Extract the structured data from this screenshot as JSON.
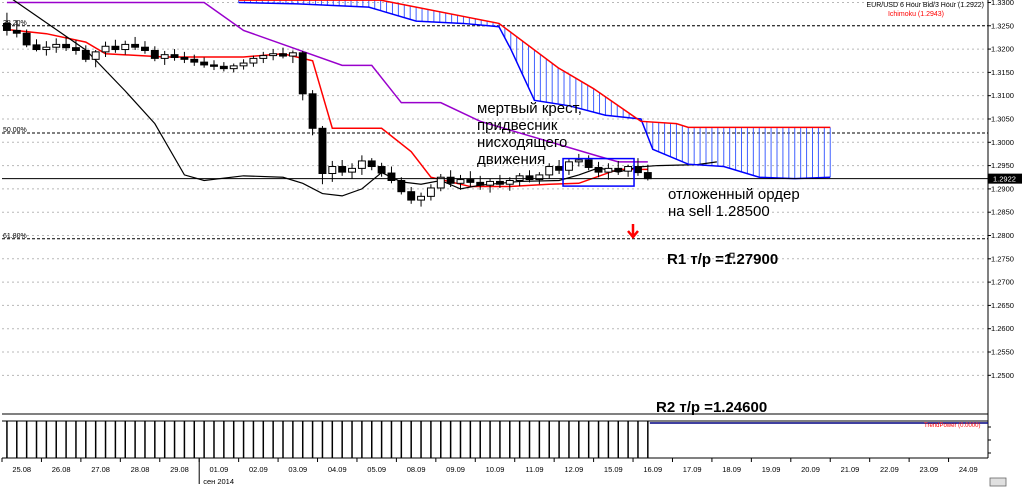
{
  "header": {
    "title": "EUR/USD 6 Hour Bid/3 Hour (1.2922)",
    "indicator": "Ichimoku (1.2943)",
    "indicator_color": "#ff0000"
  },
  "annotations": {
    "dead_cross": [
      "мертвый крест,",
      "придвесник",
      "нисходящего",
      "движения"
    ],
    "order": [
      "отложенный  ордер",
      "на  sell 1.28500"
    ],
    "r1": "R1  т/р =1.27900",
    "r2": "R2  т/р =1.24600"
  },
  "chart_data": {
    "type": "candlestick",
    "symbol": "EUR/USD",
    "price_axis": {
      "range": [
        1.2417,
        1.3301
      ],
      "ticks": [
        1.33,
        1.325,
        1.32,
        1.315,
        1.31,
        1.305,
        1.3,
        1.295,
        1.29,
        1.285,
        1.28,
        1.275,
        1.27,
        1.265,
        1.26,
        1.255,
        1.25
      ],
      "tick_labels": [
        "1.3300",
        "1.3250",
        "1.3200",
        "1.3150",
        "1.3100",
        "1.3050",
        "1.3000",
        "1.2950",
        "1.2900",
        "1.2850",
        "1.2800",
        "1.2750",
        "1.2700",
        "1.2650",
        "1.2600",
        "1.2550",
        "1.2500"
      ],
      "last_price": 1.2922,
      "last_price_label": "1.2922"
    },
    "x_axis": {
      "labels": [
        "25.08",
        "26.08",
        "27.08",
        "28.08",
        "29.08",
        "01.09",
        "02.09",
        "03.09",
        "04.09",
        "05.09",
        "08.09",
        "09.09",
        "10.09",
        "11.09",
        "12.09",
        "15.09",
        "16.09",
        "17.09",
        "18.09",
        "19.09",
        "20.09",
        "21.09",
        "22.09",
        "23.09",
        "24.09"
      ],
      "month_label": "сен 2014",
      "month_at": "01.09",
      "bars_per_day": 4,
      "visible_bars": 66,
      "total_slots": 100
    },
    "fibonacci": [
      {
        "label": "38.20%",
        "price": 1.325
      },
      {
        "label": "50.00%",
        "price": 1.302
      },
      {
        "label": "61.80%",
        "price": 1.2793
      }
    ],
    "candles": [
      [
        1.3255,
        1.3278,
        1.3229,
        1.324
      ],
      [
        1.324,
        1.3262,
        1.3225,
        1.3234
      ],
      [
        1.3234,
        1.3242,
        1.3204,
        1.3209
      ],
      [
        1.3209,
        1.3221,
        1.3195,
        1.3199
      ],
      [
        1.3199,
        1.3217,
        1.3186,
        1.3204
      ],
      [
        1.3204,
        1.3223,
        1.3192,
        1.321
      ],
      [
        1.321,
        1.3227,
        1.3196,
        1.3203
      ],
      [
        1.3203,
        1.3219,
        1.3188,
        1.3197
      ],
      [
        1.3197,
        1.3208,
        1.3172,
        1.3178
      ],
      [
        1.3178,
        1.3198,
        1.3161,
        1.3194
      ],
      [
        1.3194,
        1.3216,
        1.3183,
        1.3206
      ],
      [
        1.3206,
        1.322,
        1.3192,
        1.3199
      ],
      [
        1.3199,
        1.3218,
        1.3188,
        1.321
      ],
      [
        1.321,
        1.3226,
        1.3198,
        1.3204
      ],
      [
        1.3204,
        1.3217,
        1.319,
        1.3197
      ],
      [
        1.3197,
        1.3206,
        1.3174,
        1.318
      ],
      [
        1.318,
        1.3196,
        1.3166,
        1.3188
      ],
      [
        1.3188,
        1.32,
        1.3175,
        1.3182
      ],
      [
        1.3182,
        1.3194,
        1.317,
        1.3178
      ],
      [
        1.3178,
        1.3188,
        1.3164,
        1.3172
      ],
      [
        1.3172,
        1.3182,
        1.316,
        1.3166
      ],
      [
        1.3166,
        1.3176,
        1.3155,
        1.3163
      ],
      [
        1.3163,
        1.3172,
        1.3152,
        1.3158
      ],
      [
        1.3158,
        1.3169,
        1.315,
        1.3164
      ],
      [
        1.3164,
        1.3178,
        1.3156,
        1.317
      ],
      [
        1.317,
        1.3186,
        1.3162,
        1.318
      ],
      [
        1.318,
        1.3194,
        1.317,
        1.3186
      ],
      [
        1.3186,
        1.32,
        1.3176,
        1.319
      ],
      [
        1.319,
        1.3203,
        1.318,
        1.3185
      ],
      [
        1.3185,
        1.3197,
        1.317,
        1.3192
      ],
      [
        1.3192,
        1.3196,
        1.309,
        1.3104
      ],
      [
        1.3104,
        1.3112,
        1.3015,
        1.303
      ],
      [
        1.303,
        1.3035,
        1.291,
        1.2933
      ],
      [
        1.2933,
        1.296,
        1.2915,
        1.2948
      ],
      [
        1.2948,
        1.2962,
        1.2928,
        1.2936
      ],
      [
        1.2936,
        1.2955,
        1.2922,
        1.2944
      ],
      [
        1.2944,
        1.2972,
        1.293,
        1.296
      ],
      [
        1.296,
        1.2966,
        1.294,
        1.2948
      ],
      [
        1.2948,
        1.2956,
        1.2926,
        1.2934
      ],
      [
        1.2934,
        1.2948,
        1.2912,
        1.2918
      ],
      [
        1.2918,
        1.2925,
        1.2888,
        1.2894
      ],
      [
        1.2894,
        1.2904,
        1.2868,
        1.2876
      ],
      [
        1.2876,
        1.2892,
        1.2862,
        1.2884
      ],
      [
        1.2884,
        1.291,
        1.2875,
        1.2902
      ],
      [
        1.2902,
        1.2932,
        1.2895,
        1.2925
      ],
      [
        1.2925,
        1.294,
        1.2904,
        1.2912
      ],
      [
        1.2912,
        1.293,
        1.2898,
        1.292
      ],
      [
        1.292,
        1.2938,
        1.2905,
        1.2914
      ],
      [
        1.2914,
        1.2928,
        1.2898,
        1.2908
      ],
      [
        1.2908,
        1.2922,
        1.2892,
        1.2916
      ],
      [
        1.2916,
        1.293,
        1.2902,
        1.291
      ],
      [
        1.291,
        1.2925,
        1.2896,
        1.2918
      ],
      [
        1.2918,
        1.2934,
        1.2906,
        1.2928
      ],
      [
        1.2928,
        1.294,
        1.2914,
        1.292
      ],
      [
        1.292,
        1.2936,
        1.291,
        1.293
      ],
      [
        1.293,
        1.2955,
        1.2922,
        1.2948
      ],
      [
        1.2948,
        1.2962,
        1.2932,
        1.294
      ],
      [
        1.294,
        1.2964,
        1.293,
        1.2958
      ],
      [
        1.2958,
        1.2975,
        1.2948,
        1.2962
      ],
      [
        1.2962,
        1.2972,
        1.294,
        1.2946
      ],
      [
        1.2946,
        1.2958,
        1.2925,
        1.2936
      ],
      [
        1.2936,
        1.2955,
        1.292,
        1.2944
      ],
      [
        1.2944,
        1.296,
        1.293,
        1.2938
      ],
      [
        1.2938,
        1.2952,
        1.2926,
        1.2948
      ],
      [
        1.2948,
        1.2966,
        1.2928,
        1.2935
      ],
      [
        1.2935,
        1.2952,
        1.2918,
        1.2922
      ]
    ],
    "series": [
      {
        "kind": "tenkan",
        "color": "#ff0000",
        "points": [
          [
            0,
            1.3242
          ],
          [
            4,
            1.3233
          ],
          [
            8,
            1.3215
          ],
          [
            10,
            1.319
          ],
          [
            16,
            1.3183
          ],
          [
            24,
            1.3183
          ],
          [
            28,
            1.319
          ],
          [
            31,
            1.3175
          ],
          [
            33,
            1.303
          ],
          [
            38,
            1.303
          ],
          [
            41,
            1.298
          ],
          [
            43,
            1.2925
          ],
          [
            47,
            1.2905
          ],
          [
            51,
            1.2905
          ],
          [
            55,
            1.291
          ],
          [
            58,
            1.2912
          ],
          [
            62,
            1.2942
          ],
          [
            65,
            1.2942
          ]
        ]
      },
      {
        "kind": "kijun",
        "color": "#9900cc",
        "points": [
          [
            0,
            1.33
          ],
          [
            20,
            1.33
          ],
          [
            24,
            1.324
          ],
          [
            34,
            1.3165
          ],
          [
            37,
            1.3165
          ],
          [
            40,
            1.3085
          ],
          [
            44,
            1.3085
          ],
          [
            48,
            1.3045
          ],
          [
            60,
            1.297
          ],
          [
            62,
            1.2958
          ],
          [
            65,
            1.2958
          ]
        ]
      },
      {
        "kind": "chikou",
        "color": "#000000",
        "points": [
          [
            0,
            1.3315
          ],
          [
            8,
            1.3198
          ],
          [
            12,
            1.311
          ],
          [
            15,
            1.304
          ],
          [
            18,
            1.293
          ],
          [
            20,
            1.2918
          ],
          [
            24,
            1.2928
          ],
          [
            28,
            1.2925
          ],
          [
            30,
            1.2912
          ],
          [
            32,
            1.289
          ],
          [
            34,
            1.2885
          ],
          [
            36,
            1.29
          ],
          [
            38,
            1.2935
          ],
          [
            40,
            1.2915
          ],
          [
            42,
            1.291
          ],
          [
            44,
            1.2918
          ],
          [
            46,
            1.29
          ],
          [
            48,
            1.2908
          ],
          [
            52,
            1.2916
          ],
          [
            56,
            1.2918
          ],
          [
            58,
            1.293
          ],
          [
            60,
            1.2945
          ],
          [
            62,
            1.2936
          ],
          [
            64,
            1.2947
          ],
          [
            66,
            1.295
          ],
          [
            70,
            1.2952
          ],
          [
            72,
            1.2958
          ]
        ]
      },
      {
        "kind": "senkou_a",
        "color": "#0000ff",
        "points": [
          [
            40,
            1.33
          ],
          [
            50,
            1.3297
          ],
          [
            62,
            1.329
          ],
          [
            70,
            1.326
          ],
          [
            78,
            1.3255
          ],
          [
            84,
            1.3248
          ],
          [
            86,
            1.32
          ],
          [
            90,
            1.309
          ],
          [
            96,
            1.3078
          ],
          [
            102,
            1.3058
          ],
          [
            108,
            1.305
          ],
          [
            110,
            1.2985
          ],
          [
            116,
            1.2953
          ],
          [
            122,
            1.2948
          ],
          [
            128,
            1.2925
          ],
          [
            134,
            1.2922
          ],
          [
            140,
            1.2925
          ]
        ]
      },
      {
        "kind": "senkou_b",
        "color": "#ff0000",
        "points": [
          [
            40,
            1.3305
          ],
          [
            54,
            1.3305
          ],
          [
            64,
            1.3305
          ],
          [
            84,
            1.3255
          ],
          [
            94,
            1.316
          ],
          [
            100,
            1.3115
          ],
          [
            108,
            1.3045
          ],
          [
            114,
            1.304
          ],
          [
            116,
            1.3032
          ],
          [
            140,
            1.3032
          ]
        ]
      }
    ],
    "trend_power_label": "TrendPower (0.0000)",
    "trend_power_bars": 66
  }
}
